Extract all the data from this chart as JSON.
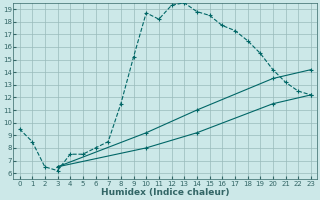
{
  "xlabel": "Humidex (Indice chaleur)",
  "bg_color": "#cce8e8",
  "line_color": "#006666",
  "grid_color": "#99bbbb",
  "axis_color": "#336666",
  "xlim": [
    -0.5,
    23.5
  ],
  "ylim": [
    5.5,
    19.5
  ],
  "xticks": [
    0,
    1,
    2,
    3,
    4,
    5,
    6,
    7,
    8,
    9,
    10,
    11,
    12,
    13,
    14,
    15,
    16,
    17,
    18,
    19,
    20,
    21,
    22,
    23
  ],
  "yticks": [
    6,
    7,
    8,
    9,
    10,
    11,
    12,
    13,
    14,
    15,
    16,
    17,
    18,
    19
  ],
  "line1_x": [
    0,
    1,
    2,
    3,
    4,
    5,
    6,
    7,
    8,
    9,
    10,
    11,
    12,
    13,
    14,
    15,
    16,
    17,
    18,
    19,
    20,
    21,
    22,
    23
  ],
  "line1_y": [
    9.5,
    8.5,
    6.5,
    6.2,
    7.5,
    7.5,
    8.0,
    8.5,
    11.5,
    15.2,
    18.7,
    18.2,
    19.3,
    19.5,
    18.8,
    18.5,
    17.7,
    17.3,
    16.5,
    15.5,
    14.2,
    13.2,
    12.5,
    12.2
  ],
  "line2_x": [
    3,
    10,
    14,
    20,
    23
  ],
  "line2_y": [
    6.5,
    8.0,
    9.2,
    11.5,
    12.2
  ],
  "line3_x": [
    3,
    10,
    14,
    20,
    23
  ],
  "line3_y": [
    6.5,
    9.2,
    11.0,
    13.5,
    14.2
  ]
}
